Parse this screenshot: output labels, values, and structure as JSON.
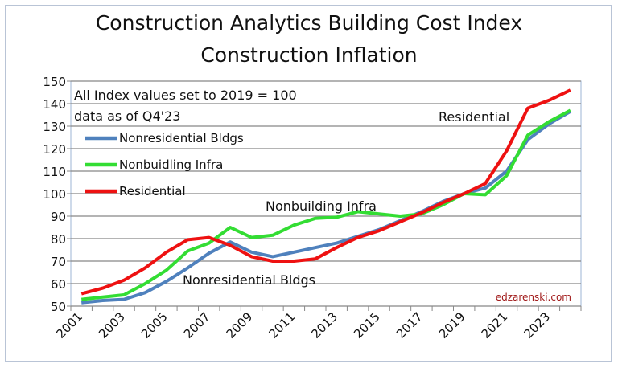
{
  "chart_data": {
    "type": "line",
    "title": [
      "Construction Analytics Building Cost Index",
      "Construction Inflation"
    ],
    "notes": [
      "All Index values set to 2019 = 100",
      "data as of Q4'23"
    ],
    "watermark": "edzarenski.com",
    "xlabel": "",
    "ylabel": "",
    "ylim": [
      50,
      150
    ],
    "yticks": [
      50,
      60,
      70,
      80,
      90,
      100,
      110,
      120,
      130,
      140,
      150
    ],
    "xtick_labels": [
      "2001",
      "2003",
      "2005",
      "2007",
      "2009",
      "2011",
      "2013",
      "2015",
      "2017",
      "2019",
      "2021",
      "2023"
    ],
    "x": [
      2001,
      2002,
      2003,
      2004,
      2005,
      2006,
      2007,
      2008,
      2009,
      2010,
      2011,
      2012,
      2013,
      2014,
      2015,
      2016,
      2017,
      2018,
      2019,
      2020,
      2021,
      2022,
      2023,
      2024
    ],
    "grid": true,
    "legend_position": "top-left",
    "series": [
      {
        "name": "Nonresidential Bldgs",
        "color": "#4f81bd",
        "values": [
          51.5,
          52.5,
          53,
          56,
          61,
          67,
          73.5,
          78.5,
          74,
          72,
          74,
          76,
          78,
          81,
          84,
          88,
          92,
          96.5,
          100,
          102.5,
          110,
          124,
          131,
          136.5
        ]
      },
      {
        "name": "Nonbuidling Infra",
        "color": "#33dd33",
        "values": [
          53,
          54,
          55,
          60,
          66,
          74.5,
          78,
          85,
          80.5,
          81.5,
          86,
          89,
          89.5,
          92,
          91,
          90,
          91,
          95,
          100,
          99.5,
          108,
          126,
          132,
          137
        ]
      },
      {
        "name": "Residential",
        "color": "#ee1111",
        "values": [
          55.5,
          58,
          61.5,
          67,
          74,
          79.5,
          80.5,
          77,
          72,
          70,
          70,
          71,
          76,
          80.5,
          83.5,
          87.5,
          91.5,
          96,
          100,
          104.5,
          119,
          138,
          141.5,
          146
        ]
      }
    ],
    "annotations": [
      "Residential",
      "Nonbuilding Infra",
      "Nonresidential Bldgs"
    ]
  }
}
